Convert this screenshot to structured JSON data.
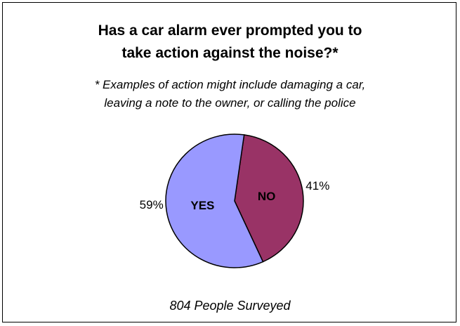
{
  "title": {
    "line1": "Has a car alarm ever prompted you to",
    "line2": "take action against the noise?*"
  },
  "subtitle": {
    "line1": "* Examples of action might include damaging a car,",
    "line2": "leaving a note to the owner, or calling the police"
  },
  "footer": "804 People Surveyed",
  "chart_data": {
    "type": "pie",
    "title": "Has a car alarm ever prompted you to take action against the noise?*",
    "slices": [
      {
        "label": "YES",
        "value": 59,
        "value_label": "59%",
        "color": "#9999ff"
      },
      {
        "label": "NO",
        "value": 41,
        "value_label": "41%",
        "color": "#993366"
      }
    ],
    "legend": false
  }
}
